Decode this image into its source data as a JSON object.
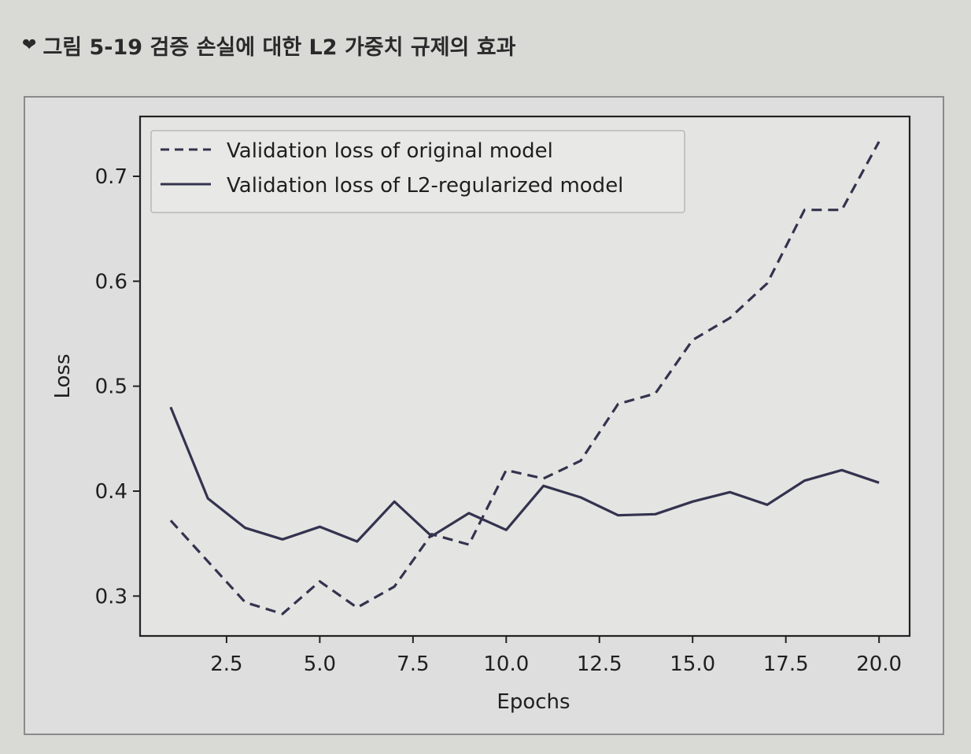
{
  "caption": {
    "chevron_icon": "chevron-down-icon",
    "text": "그림 5-19 검증 손실에 대한 L2 가중치 규제의 효과"
  },
  "chart_data": {
    "type": "line",
    "xlabel": "Epochs",
    "ylabel": "Loss",
    "xlim": [
      0.18,
      20.82
    ],
    "ylim": [
      0.262,
      0.757
    ],
    "x_ticks": [
      2.5,
      5.0,
      7.5,
      10.0,
      12.5,
      15.0,
      17.5,
      20.0
    ],
    "x_tick_labels": [
      "2.5",
      "5.0",
      "7.5",
      "10.0",
      "12.5",
      "15.0",
      "17.5",
      "20.0"
    ],
    "y_ticks": [
      0.3,
      0.4,
      0.5,
      0.6,
      0.7
    ],
    "y_tick_labels": [
      "0.3",
      "0.4",
      "0.5",
      "0.6",
      "0.7"
    ],
    "grid": false,
    "legend_position": "upper-left",
    "series": [
      {
        "name": "Validation loss of original model",
        "style": "dashed",
        "color": "#33334f",
        "x": [
          1,
          2,
          3,
          4,
          5,
          6,
          7,
          8,
          9,
          10,
          11,
          12,
          13,
          14,
          15,
          16,
          17,
          18,
          19,
          20
        ],
        "y": [
          0.372,
          0.333,
          0.294,
          0.283,
          0.314,
          0.289,
          0.309,
          0.359,
          0.349,
          0.42,
          0.412,
          0.429,
          0.483,
          0.493,
          0.544,
          0.565,
          0.598,
          0.668,
          0.668,
          0.733
        ]
      },
      {
        "name": "Validation loss of L2-regularized model",
        "style": "solid",
        "color": "#33334f",
        "x": [
          1,
          2,
          3,
          4,
          5,
          6,
          7,
          8,
          9,
          10,
          11,
          12,
          13,
          14,
          15,
          16,
          17,
          18,
          19,
          20
        ],
        "y": [
          0.48,
          0.393,
          0.365,
          0.354,
          0.366,
          0.352,
          0.39,
          0.357,
          0.379,
          0.363,
          0.405,
          0.394,
          0.377,
          0.378,
          0.39,
          0.399,
          0.387,
          0.41,
          0.42,
          0.408
        ]
      }
    ]
  }
}
